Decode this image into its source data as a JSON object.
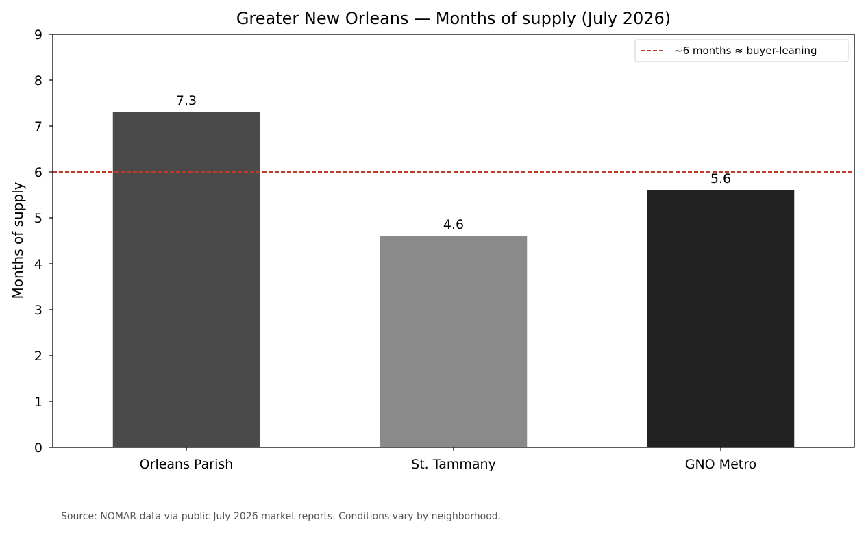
{
  "chart_data": {
    "type": "bar",
    "title": "Greater New Orleans — Months of supply (July 2026)",
    "xlabel": "",
    "ylabel": "Months of supply",
    "categories": [
      "Orleans Parish",
      "St. Tammany",
      "GNO Metro"
    ],
    "values": [
      7.3,
      4.6,
      5.6
    ],
    "data_labels": [
      "7.3",
      "4.6",
      "5.6"
    ],
    "bar_colors": [
      "#4a4a4a",
      "#8a8a8a",
      "#222222"
    ],
    "ylim": [
      0,
      9
    ],
    "yticks": [
      0,
      1,
      2,
      3,
      4,
      5,
      6,
      7,
      8,
      9
    ],
    "grid": false,
    "reference_line": {
      "value": 6,
      "label": "~6 months ≈ buyer-leaning",
      "color": "#c0392b",
      "style": "dashed"
    },
    "legend": {
      "position": "top-right",
      "entries": [
        "~6 months ≈ buyer-leaning"
      ]
    }
  },
  "source_note": "Source: NOMAR data via public July 2026 market reports. Conditions vary by neighborhood."
}
